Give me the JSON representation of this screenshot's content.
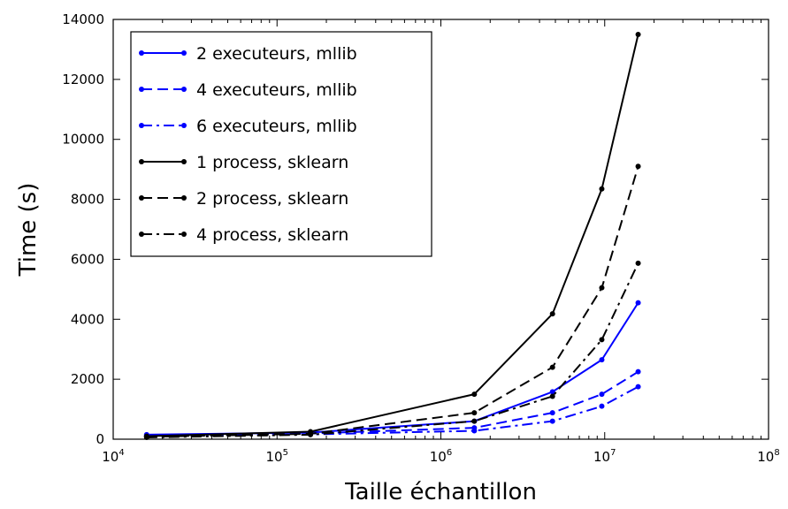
{
  "chart_data": {
    "type": "line",
    "title": "",
    "xlabel": "Taille échantillon",
    "ylabel": "Time (s)",
    "xscale": "log",
    "xlim": [
      10000,
      100000000
    ],
    "ylim": [
      0,
      14000
    ],
    "grid": false,
    "legend_position": "top-left",
    "x_ticks": [
      {
        "base": "10",
        "exp": "4"
      },
      {
        "base": "10",
        "exp": "5"
      },
      {
        "base": "10",
        "exp": "6"
      },
      {
        "base": "10",
        "exp": "7"
      },
      {
        "base": "10",
        "exp": "8"
      }
    ],
    "y_ticks": [
      "0",
      "2000",
      "4000",
      "6000",
      "8000",
      "10000",
      "12000",
      "14000"
    ],
    "y_tick_values": [
      0,
      2000,
      4000,
      6000,
      8000,
      10000,
      12000,
      14000
    ],
    "x": [
      16000,
      160000,
      1600000,
      4800000,
      9600000,
      16000000
    ],
    "series": [
      {
        "name": "2 executeurs, mllib",
        "color": "#0000ff",
        "style": "solid",
        "values": [
          150,
          220,
          600,
          1580,
          2650,
          4550
        ]
      },
      {
        "name": "4 executeurs, mllib",
        "color": "#0000ff",
        "style": "dashed",
        "values": [
          120,
          190,
          380,
          880,
          1500,
          2250
        ]
      },
      {
        "name": "6 executeurs, mllib",
        "color": "#0000ff",
        "style": "dashdot",
        "values": [
          100,
          160,
          280,
          600,
          1100,
          1750
        ]
      },
      {
        "name": "1 process, sklearn",
        "color": "#000000",
        "style": "solid",
        "values": [
          100,
          250,
          1500,
          4180,
          8350,
          13500
        ]
      },
      {
        "name": "2 process, sklearn",
        "color": "#000000",
        "style": "dashed",
        "values": [
          80,
          180,
          880,
          2400,
          5050,
          9100
        ]
      },
      {
        "name": "4 process, sklearn",
        "color": "#000000",
        "style": "dashdot",
        "values": [
          60,
          150,
          600,
          1430,
          3320,
          5870
        ]
      }
    ]
  }
}
